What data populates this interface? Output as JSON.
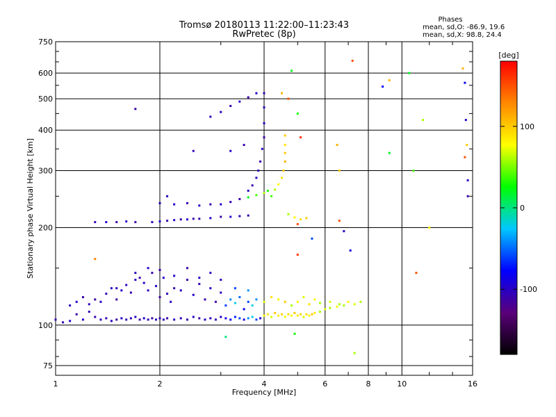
{
  "chart_data": {
    "type": "scatter",
    "title": "Tromsø 20180113 11:22:00–11:23:43",
    "subtitle": "RwPretec (8p)",
    "xlabel": "Frequency [MHz]",
    "ylabel": "Stationary phase Virtual Height [km]",
    "x_scale": "log",
    "y_scale": "log",
    "xlim": [
      1,
      16
    ],
    "ylim": [
      70,
      750
    ],
    "x_ticks": [
      1,
      2,
      4,
      6,
      8,
      10,
      16
    ],
    "x_tick_labels": [
      "1",
      "2",
      "4",
      "6",
      "8",
      "10",
      "16"
    ],
    "y_ticks": [
      75,
      100,
      200,
      300,
      400,
      500,
      600,
      750
    ],
    "y_tick_labels": [
      "75",
      "100",
      "200",
      "300",
      "400",
      "500",
      "600",
      "750"
    ],
    "grid": true,
    "stats": {
      "heading": "Phases",
      "line_o": "mean, sd,O: -86.9, 19.6",
      "line_x": "mean, sd,X:  98.8, 24.4"
    },
    "colorbar": {
      "label": "[deg]",
      "range": [
        -180,
        180
      ],
      "ticks": [
        100,
        0,
        -100
      ],
      "tick_labels": [
        "100",
        "0",
        "-100"
      ],
      "stops": [
        "#000000",
        "#5a007a",
        "#0000ff",
        "#00c8ff",
        "#00ff00",
        "#ffff00",
        "#ff8800",
        "#ff0000"
      ]
    },
    "series": [
      {
        "points": [
          [
            1.0,
            104,
            -110
          ],
          [
            1.05,
            102,
            -105
          ],
          [
            1.1,
            103,
            -100
          ],
          [
            1.15,
            108,
            -110
          ],
          [
            1.2,
            104,
            -95
          ],
          [
            1.25,
            110,
            -105
          ],
          [
            1.3,
            106,
            -110
          ],
          [
            1.35,
            104,
            -100
          ],
          [
            1.4,
            105,
            -108
          ],
          [
            1.45,
            103,
            -102
          ],
          [
            1.5,
            104,
            -110
          ],
          [
            1.55,
            105,
            -98
          ],
          [
            1.6,
            104,
            -104
          ],
          [
            1.65,
            105,
            -108
          ],
          [
            1.7,
            106,
            -100
          ],
          [
            1.75,
            104,
            -112
          ],
          [
            1.8,
            105,
            -95
          ],
          [
            1.85,
            104,
            -104
          ],
          [
            1.9,
            105,
            -110
          ],
          [
            1.95,
            104,
            -100
          ],
          [
            2.0,
            105,
            -106
          ],
          [
            2.05,
            104,
            -102
          ],
          [
            2.1,
            105,
            -110
          ],
          [
            2.2,
            104,
            -98
          ],
          [
            2.3,
            105,
            -104
          ],
          [
            2.4,
            104,
            -108
          ],
          [
            2.5,
            106,
            -100
          ],
          [
            2.6,
            105,
            -110
          ],
          [
            2.7,
            104,
            -96
          ],
          [
            2.8,
            105,
            -104
          ],
          [
            2.9,
            104,
            -108
          ],
          [
            3.0,
            106,
            -100
          ],
          [
            3.1,
            105,
            -90
          ],
          [
            3.2,
            104,
            -80
          ],
          [
            3.3,
            106,
            -70
          ],
          [
            3.4,
            105,
            -60
          ],
          [
            3.5,
            104,
            -90
          ],
          [
            3.6,
            105,
            -40
          ],
          [
            3.7,
            106,
            -20
          ],
          [
            3.8,
            104,
            -60
          ],
          [
            3.9,
            105,
            -100
          ],
          [
            1.1,
            115,
            -100
          ],
          [
            1.15,
            118,
            -95
          ],
          [
            1.2,
            122,
            -108
          ],
          [
            1.25,
            116,
            -102
          ],
          [
            1.3,
            120,
            -110
          ],
          [
            1.35,
            118,
            -96
          ],
          [
            1.4,
            125,
            -104
          ],
          [
            1.45,
            130,
            -100
          ],
          [
            1.5,
            120,
            -112
          ],
          [
            1.55,
            128,
            -98
          ],
          [
            1.6,
            133,
            -104
          ],
          [
            1.65,
            126,
            -108
          ],
          [
            1.7,
            138,
            -100
          ],
          [
            1.75,
            140,
            -110
          ],
          [
            1.8,
            135,
            -96
          ],
          [
            1.85,
            128,
            -104
          ],
          [
            1.9,
            145,
            -108
          ],
          [
            1.95,
            132,
            -100
          ],
          [
            2.0,
            122,
            -110
          ],
          [
            2.05,
            140,
            -96
          ],
          [
            2.1,
            125,
            -104
          ],
          [
            2.15,
            118,
            -100
          ],
          [
            2.2,
            130,
            -108
          ],
          [
            2.3,
            128,
            -102
          ],
          [
            2.4,
            138,
            -110
          ],
          [
            2.5,
            124,
            -96
          ],
          [
            2.6,
            134,
            -104
          ],
          [
            2.7,
            120,
            -108
          ],
          [
            2.8,
            130,
            -100
          ],
          [
            2.9,
            118,
            -112
          ],
          [
            3.0,
            126,
            -104
          ],
          [
            3.1,
            115,
            -60
          ],
          [
            3.2,
            120,
            -40
          ],
          [
            3.3,
            117,
            -20
          ],
          [
            3.4,
            122,
            -50
          ],
          [
            3.5,
            112,
            -80
          ],
          [
            3.6,
            118,
            -60
          ],
          [
            3.7,
            115,
            -20
          ],
          [
            3.8,
            120,
            -40
          ],
          [
            1.5,
            130,
            -100
          ],
          [
            1.7,
            145,
            -104
          ],
          [
            1.85,
            150,
            -96
          ],
          [
            2.0,
            148,
            -108
          ],
          [
            2.2,
            142,
            -100
          ],
          [
            2.4,
            150,
            -110
          ],
          [
            2.6,
            140,
            -96
          ],
          [
            2.8,
            145,
            -104
          ],
          [
            3.0,
            138,
            -100
          ],
          [
            3.3,
            130,
            -60
          ],
          [
            3.6,
            128,
            -40
          ],
          [
            4.0,
            107,
            80
          ],
          [
            4.1,
            108,
            90
          ],
          [
            4.2,
            106,
            70
          ],
          [
            4.3,
            109,
            100
          ],
          [
            4.4,
            107,
            85
          ],
          [
            4.5,
            108,
            95
          ],
          [
            4.6,
            106,
            75
          ],
          [
            4.7,
            108,
            90
          ],
          [
            4.8,
            107,
            80
          ],
          [
            4.9,
            109,
            100
          ],
          [
            5.0,
            107,
            85
          ],
          [
            5.1,
            108,
            95
          ],
          [
            5.2,
            106,
            70
          ],
          [
            5.3,
            108,
            90
          ],
          [
            5.4,
            107,
            80
          ],
          [
            5.5,
            108,
            100
          ],
          [
            5.6,
            109,
            85
          ],
          [
            5.8,
            110,
            60
          ],
          [
            6.0,
            112,
            70
          ],
          [
            6.2,
            113,
            60
          ],
          [
            6.5,
            114,
            75
          ],
          [
            6.8,
            115,
            60
          ],
          [
            7.0,
            118,
            80
          ],
          [
            7.3,
            116,
            70
          ],
          [
            7.6,
            118,
            60
          ],
          [
            4.0,
            118,
            70
          ],
          [
            4.2,
            122,
            90
          ],
          [
            4.4,
            120,
            80
          ],
          [
            4.6,
            118,
            100
          ],
          [
            4.8,
            115,
            60
          ],
          [
            5.0,
            118,
            80
          ],
          [
            5.2,
            122,
            70
          ],
          [
            5.4,
            116,
            90
          ],
          [
            5.6,
            120,
            80
          ],
          [
            5.8,
            117,
            60
          ],
          [
            6.2,
            118,
            70
          ],
          [
            6.6,
            116,
            60
          ],
          [
            1.3,
            208,
            -104
          ],
          [
            1.4,
            208,
            -96
          ],
          [
            1.5,
            208,
            -108
          ],
          [
            1.6,
            209,
            -100
          ],
          [
            1.7,
            208,
            -110
          ],
          [
            1.9,
            208,
            -104
          ],
          [
            2.0,
            209,
            -96
          ],
          [
            2.1,
            210,
            -108
          ],
          [
            2.2,
            211,
            -100
          ],
          [
            2.3,
            212,
            -110
          ],
          [
            2.4,
            212,
            -96
          ],
          [
            2.5,
            213,
            -104
          ],
          [
            2.6,
            213,
            -108
          ],
          [
            2.8,
            214,
            -100
          ],
          [
            3.0,
            216,
            -110
          ],
          [
            3.2,
            216,
            -96
          ],
          [
            3.4,
            217,
            -104
          ],
          [
            3.6,
            218,
            -108
          ],
          [
            2.0,
            238,
            -104
          ],
          [
            2.2,
            236,
            -96
          ],
          [
            2.4,
            238,
            -108
          ],
          [
            2.6,
            234,
            -100
          ],
          [
            2.8,
            236,
            -110
          ],
          [
            3.0,
            236,
            -96
          ],
          [
            3.2,
            240,
            -104
          ],
          [
            3.4,
            245,
            -108
          ],
          [
            3.6,
            260,
            -100
          ],
          [
            3.7,
            270,
            -110
          ],
          [
            3.8,
            285,
            -96
          ],
          [
            3.85,
            300,
            -104
          ],
          [
            3.9,
            320,
            -108
          ],
          [
            3.95,
            350,
            -100
          ],
          [
            4.0,
            380,
            -110
          ],
          [
            4.0,
            420,
            -96
          ],
          [
            4.0,
            470,
            -104
          ],
          [
            4.0,
            520,
            -108
          ],
          [
            2.8,
            440,
            -104
          ],
          [
            3.0,
            455,
            -96
          ],
          [
            3.2,
            475,
            -108
          ],
          [
            3.4,
            490,
            -100
          ],
          [
            3.6,
            505,
            -110
          ],
          [
            3.8,
            520,
            -96
          ],
          [
            4.2,
            250,
            40
          ],
          [
            4.3,
            262,
            60
          ],
          [
            4.4,
            272,
            80
          ],
          [
            4.5,
            285,
            90
          ],
          [
            4.55,
            300,
            100
          ],
          [
            4.6,
            320,
            110
          ],
          [
            4.6,
            340,
            100
          ],
          [
            4.6,
            360,
            90
          ],
          [
            4.6,
            385,
            100
          ],
          [
            4.7,
            220,
            60
          ],
          [
            4.9,
            215,
            80
          ],
          [
            5.1,
            212,
            90
          ],
          [
            5.3,
            214,
            100
          ],
          [
            3.6,
            248,
            20
          ],
          [
            3.8,
            252,
            40
          ],
          [
            4.0,
            256,
            60
          ],
          [
            4.1,
            260,
            30
          ],
          [
            2.1,
            250,
            -100
          ],
          [
            2.5,
            345,
            -104
          ],
          [
            3.2,
            345,
            -96
          ],
          [
            3.5,
            360,
            -108
          ],
          [
            1.7,
            465,
            -110
          ],
          [
            4.5,
            520,
            110
          ],
          [
            4.8,
            610,
            20
          ],
          [
            4.7,
            500,
            150
          ],
          [
            5.0,
            450,
            30
          ],
          [
            5.1,
            380,
            160
          ],
          [
            5.0,
            205,
            150
          ],
          [
            6.5,
            360,
            110
          ],
          [
            6.6,
            300,
            100
          ],
          [
            6.6,
            210,
            150
          ],
          [
            7.2,
            655,
            150
          ],
          [
            7.1,
            170,
            -90
          ],
          [
            8.8,
            545,
            -80
          ],
          [
            9.2,
            570,
            110
          ],
          [
            9.2,
            340,
            20
          ],
          [
            10.5,
            600,
            20
          ],
          [
            10.8,
            300,
            40
          ],
          [
            11.0,
            145,
            150
          ],
          [
            11.5,
            430,
            60
          ],
          [
            12.0,
            200,
            80
          ],
          [
            15.0,
            620,
            110
          ],
          [
            15.2,
            560,
            -80
          ],
          [
            15.3,
            430,
            -100
          ],
          [
            15.4,
            360,
            100
          ],
          [
            15.5,
            280,
            -100
          ],
          [
            15.5,
            250,
            -110
          ],
          [
            15.2,
            330,
            150
          ],
          [
            1.3,
            160,
            130
          ],
          [
            3.1,
            92,
            0
          ],
          [
            4.9,
            94,
            30
          ],
          [
            5.0,
            165,
            160
          ],
          [
            5.5,
            185,
            -60
          ],
          [
            6.8,
            195,
            -100
          ],
          [
            7.3,
            82,
            60
          ]
        ]
      }
    ]
  }
}
